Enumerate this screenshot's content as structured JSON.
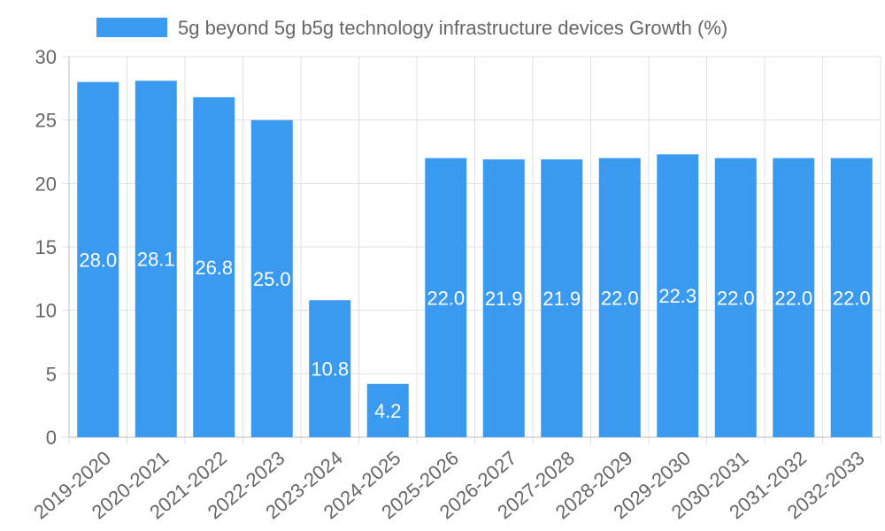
{
  "chart_data": {
    "type": "bar",
    "title": "",
    "xlabel": "",
    "ylabel": "",
    "ylim": [
      0,
      30
    ],
    "yticks": [
      0,
      5,
      10,
      15,
      20,
      25,
      30
    ],
    "grid": true,
    "legend": "top-center",
    "categories": [
      "2019-2020",
      "2020-2021",
      "2021-2022",
      "2022-2023",
      "2023-2024",
      "2024-2025",
      "2025-2026",
      "2026-2027",
      "2027-2028",
      "2028-2029",
      "2029-2030",
      "2030-2031",
      "2031-2032",
      "2032-2033"
    ],
    "series": [
      {
        "name": "5g beyond 5g b5g technology infrastructure devices Growth (%)",
        "values": [
          28.0,
          28.1,
          26.8,
          25.0,
          10.8,
          4.2,
          22.0,
          21.9,
          21.9,
          22.0,
          22.3,
          22.0,
          22.0,
          22.0
        ],
        "labels": [
          "28.0",
          "28.1",
          "26.8",
          "25.0",
          "10.8",
          "4.2",
          "22.0",
          "21.9",
          "21.9",
          "22.0",
          "22.3",
          "22.0",
          "22.0",
          "22.0"
        ],
        "color": "#3a9af0"
      }
    ]
  }
}
